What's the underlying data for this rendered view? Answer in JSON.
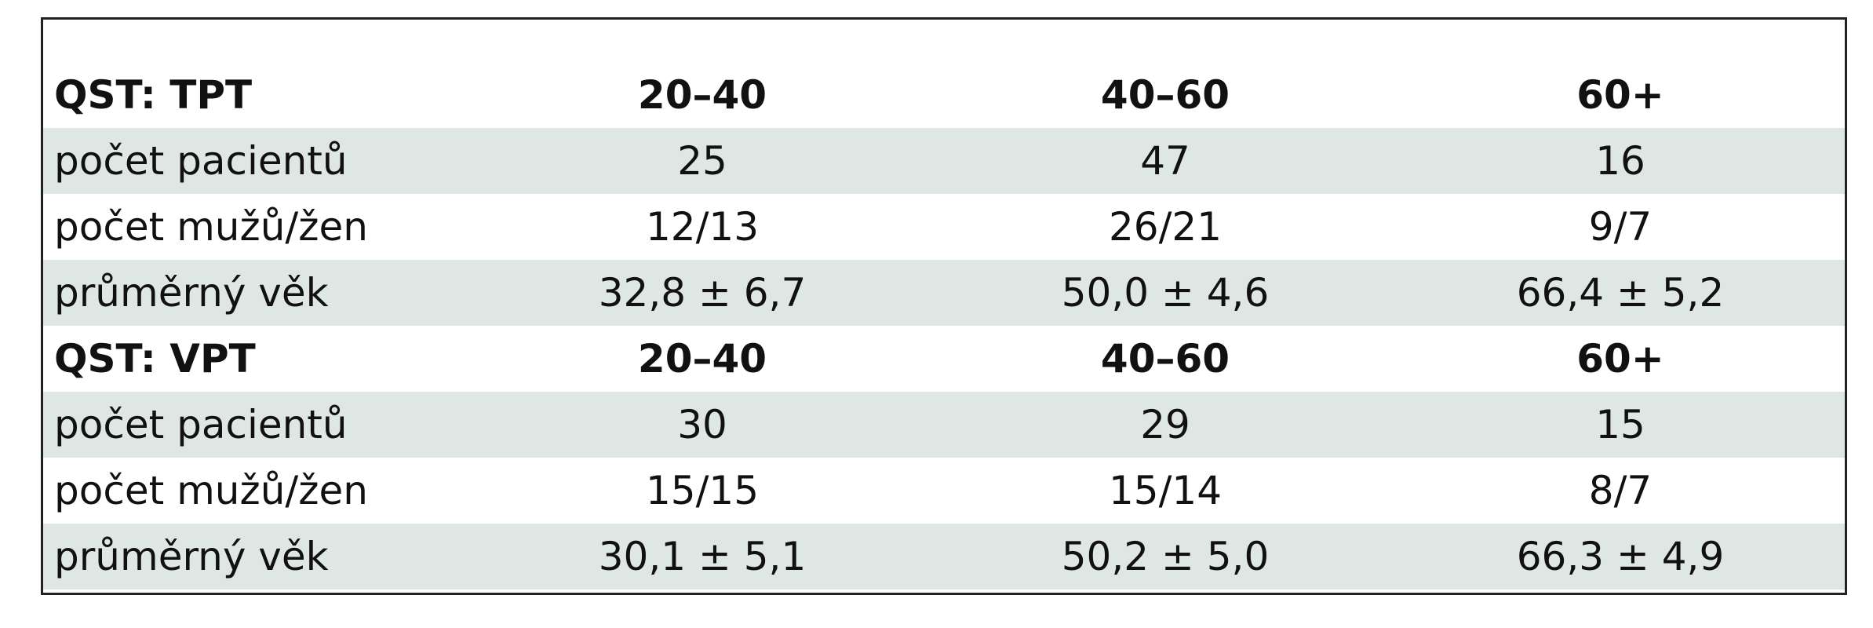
{
  "table": {
    "sections": [
      {
        "header": [
          "QST: TPT",
          "20–40",
          "40–60",
          "60+"
        ],
        "rows": [
          [
            "počet pacientů",
            "25",
            "47",
            "16"
          ],
          [
            "počet mužů/žen",
            "12/13",
            "26/21",
            "9/7"
          ],
          [
            "průměrný věk",
            "32,8 ± 6,7",
            "50,0 ± 4,6",
            "66,4 ± 5,2"
          ]
        ]
      },
      {
        "header": [
          "QST: VPT",
          "20–40",
          "40–60",
          "60+"
        ],
        "rows": [
          [
            "počet pacientů",
            "30",
            "29",
            "15"
          ],
          [
            "počet mužů/žen",
            "15/15",
            "15/14",
            "8/7"
          ],
          [
            "průměrný věk",
            "30,1 ± 5,1",
            "50,2 ± 5,0",
            "66,3 ± 4,9"
          ]
        ]
      }
    ]
  }
}
